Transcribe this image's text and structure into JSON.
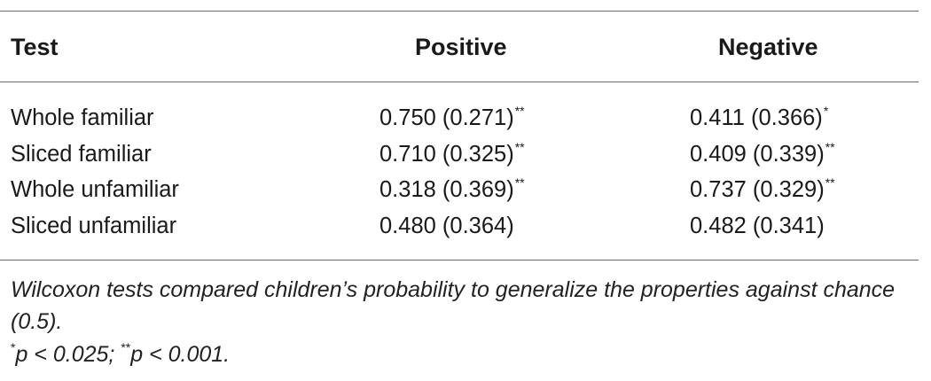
{
  "table": {
    "headers": [
      "Test",
      "Positive",
      "Negative"
    ],
    "rows": [
      {
        "test": "Whole familiar",
        "positive": "0.750 (0.271)",
        "positive_sig": "**",
        "negative": "0.411 (0.366)",
        "negative_sig": "*"
      },
      {
        "test": "Sliced familiar",
        "positive": "0.710 (0.325)",
        "positive_sig": "**",
        "negative": "0.409 (0.339)",
        "negative_sig": "**"
      },
      {
        "test": "Whole unfamiliar",
        "positive": "0.318 (0.369)",
        "positive_sig": "**",
        "negative": "0.737 (0.329)",
        "negative_sig": "**"
      },
      {
        "test": "Sliced unfamiliar",
        "positive": "0.480 (0.364)",
        "positive_sig": "",
        "negative": "0.482 (0.341)",
        "negative_sig": ""
      }
    ]
  },
  "footnote": {
    "text": "Wilcoxon tests compared children’s probability to generalize the properties against chance (0.5).",
    "sig1_marker": "*",
    "sig1_text": "p < 0.025; ",
    "sig2_marker": "**",
    "sig2_text": "p < 0.001."
  }
}
